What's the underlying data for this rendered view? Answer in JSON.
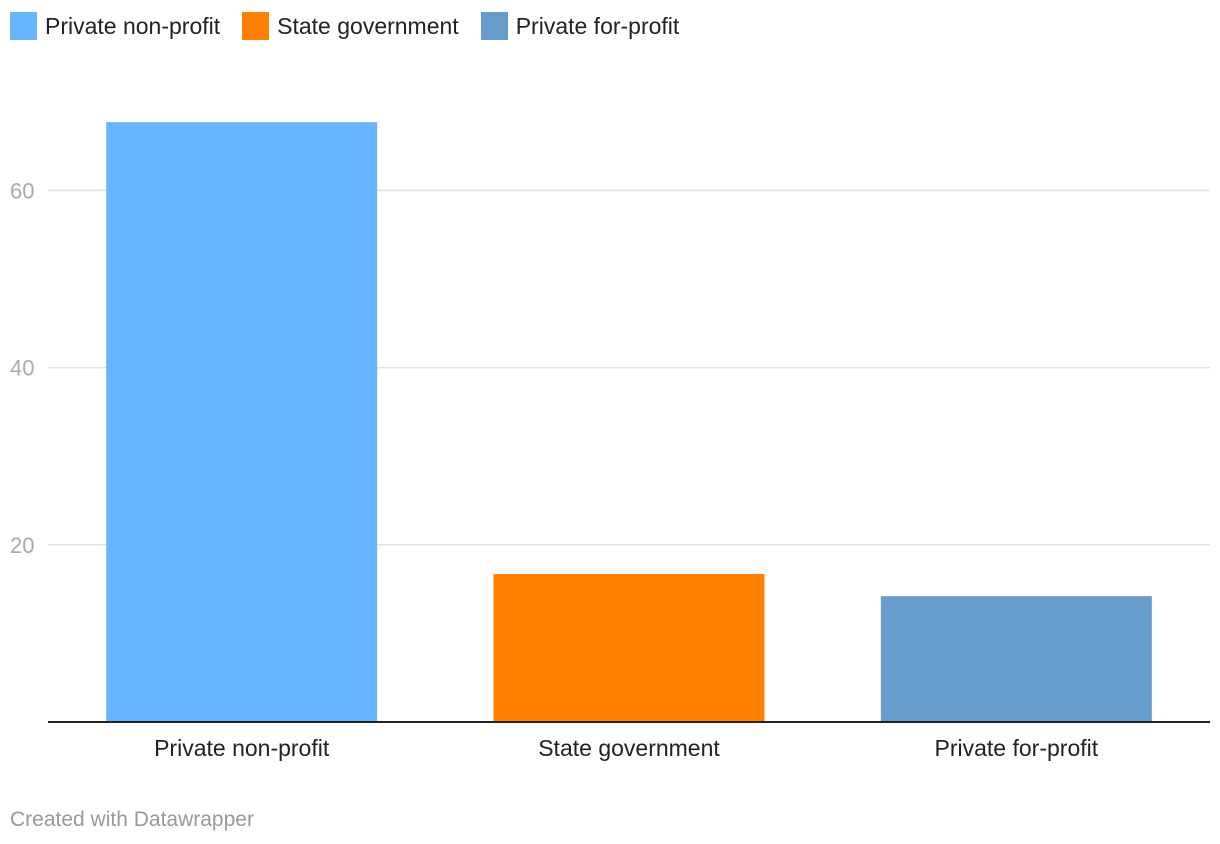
{
  "chart_data": {
    "type": "bar",
    "categories": [
      "Private non-profit",
      "State government",
      "Private for-profit"
    ],
    "values": [
      67.7,
      16.7,
      14.2
    ],
    "colors": [
      "#68b4ff",
      "#ff8000",
      "#669bcc"
    ],
    "ylim": [
      0,
      75
    ],
    "yticks": [
      20,
      40,
      60
    ],
    "grid": true,
    "legend": {
      "placement": "top-left",
      "entries": [
        "Private non-profit",
        "State government",
        "Private for-profit"
      ]
    }
  },
  "footer": {
    "credit": "Created with Datawrapper"
  }
}
